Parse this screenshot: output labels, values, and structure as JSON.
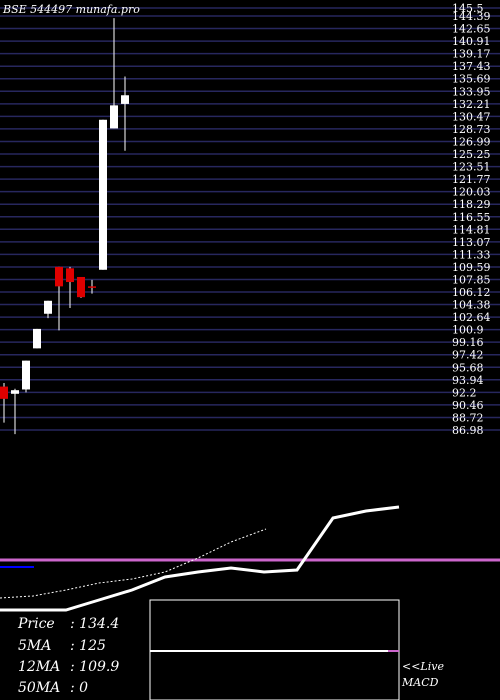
{
  "chart_data": [
    {
      "type": "candlestick",
      "title": "BSE 544497 munafa.pro",
      "y_tick_labels": [
        "145.5",
        "144.39",
        "142.65",
        "140.91",
        "139.17",
        "137.43",
        "135.69",
        "133.95",
        "132.21",
        "130.47",
        "128.73",
        "126.99",
        "125.25",
        "123.51",
        "121.77",
        "120.03",
        "118.29",
        "116.55",
        "114.81",
        "113.07",
        "111.33",
        "109.59",
        "107.85",
        "106.12",
        "104.38",
        "102.64",
        "100.9",
        "99.16",
        "97.42",
        "95.68",
        "93.94",
        "92.2",
        "90.46",
        "88.72",
        "86.98"
      ],
      "ylim": [
        86.98,
        145.5
      ],
      "grid": true,
      "candles": [
        {
          "open": 93.0,
          "high": 93.5,
          "low": 88.0,
          "close": 91.3,
          "color": "#e00000"
        },
        {
          "open": 92.0,
          "high": 92.7,
          "low": 86.4,
          "close": 92.5,
          "color": "#ffffff"
        },
        {
          "open": 92.6,
          "high": 96.6,
          "low": 92.2,
          "close": 96.6,
          "color": "#ffffff"
        },
        {
          "open": 98.3,
          "high": 101.0,
          "low": 98.3,
          "close": 101.0,
          "color": "#ffffff"
        },
        {
          "open": 103.1,
          "high": 104.9,
          "low": 102.5,
          "close": 104.9,
          "color": "#ffffff"
        },
        {
          "open": 109.6,
          "high": 109.6,
          "low": 100.8,
          "close": 106.9,
          "color": "#e00000"
        },
        {
          "open": 109.4,
          "high": 109.6,
          "low": 103.9,
          "close": 107.5,
          "color": "#e00000"
        },
        {
          "open": 108.2,
          "high": 108.2,
          "low": 105.3,
          "close": 105.4,
          "color": "#e00000"
        },
        {
          "open": 106.9,
          "high": 107.8,
          "low": 105.9,
          "close": 106.9,
          "color": "#e00000"
        },
        {
          "open": 109.2,
          "high": 130.0,
          "low": 109.2,
          "close": 130.0,
          "color": "#ffffff"
        },
        {
          "open": 128.8,
          "high": 144.1,
          "low": 128.8,
          "close": 132.0,
          "color": "#ffffff"
        },
        {
          "open": 132.2,
          "high": 136.0,
          "low": 125.7,
          "close": 133.4,
          "color": "#ffffff"
        }
      ]
    },
    {
      "type": "line",
      "series": [
        {
          "values": [
            0,
            0,
            0,
            2,
            5,
            8,
            10,
            15,
            18,
            18,
            17,
            18,
            40,
            44,
            46
          ],
          "color": "#ffffff"
        },
        {
          "values": [
            10,
            12,
            13,
            15,
            17,
            21,
            30,
            38,
            45
          ],
          "color": "#ffffff",
          "dashed": true
        }
      ],
      "reference_line_color": "#cc66cc",
      "marker_color": "#0000ff"
    },
    {
      "type": "line",
      "series": [
        {
          "values": [
            0,
            0,
            0,
            0,
            0,
            0,
            0,
            0,
            0,
            0,
            0,
            0,
            0,
            0,
            0,
            0,
            0,
            0
          ],
          "color": "#ffffff"
        }
      ],
      "reference_line_color": "#cc66cc"
    }
  ],
  "info": [
    {
      "label": "Price",
      "value": "134.4"
    },
    {
      "label": "5MA",
      "value": "125"
    },
    {
      "label": "12MA",
      "value": "109.9"
    },
    {
      "label": "50MA",
      "value": "0"
    }
  ],
  "macd_label": [
    "<<Live",
    "MACD"
  ]
}
